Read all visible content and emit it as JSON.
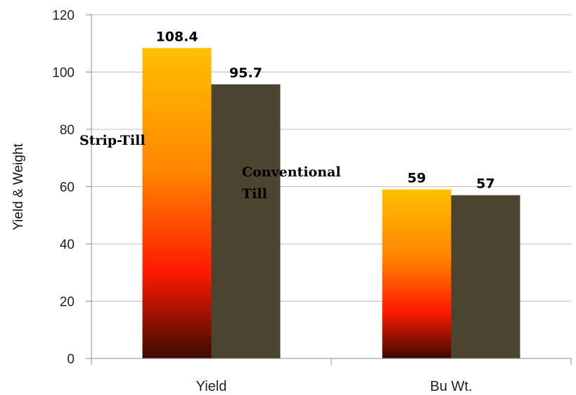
{
  "chart_data": {
    "type": "bar",
    "categories": [
      "Yield",
      "Bu Wt."
    ],
    "series": [
      {
        "name": "Strip-Till",
        "values": [
          108.4,
          59
        ]
      },
      {
        "name": "Conventional Till",
        "values": [
          95.7,
          57
        ]
      }
    ],
    "value_labels": [
      "108.4",
      "59",
      "95.7",
      "57"
    ],
    "ylabel": "Yield & Weight",
    "xlabel": "",
    "ylim": [
      0,
      120
    ],
    "yticks": [
      0,
      20,
      40,
      60,
      80,
      100,
      120
    ],
    "grid": true,
    "legend": "none",
    "annotations": [
      {
        "text": "Strip-Till",
        "series": 0
      },
      {
        "text": "Conventional Till",
        "lines": [
          "Conventional",
          "Till"
        ],
        "series": 1
      }
    ],
    "colors": {
      "strip_till_gradient": [
        "#ffc000",
        "#ff8c00",
        "#ff1a00",
        "#3d0a00"
      ],
      "conventional_till": "#4b4430",
      "grid": "#bfbfbf",
      "axis": "#8c8c8c"
    }
  }
}
